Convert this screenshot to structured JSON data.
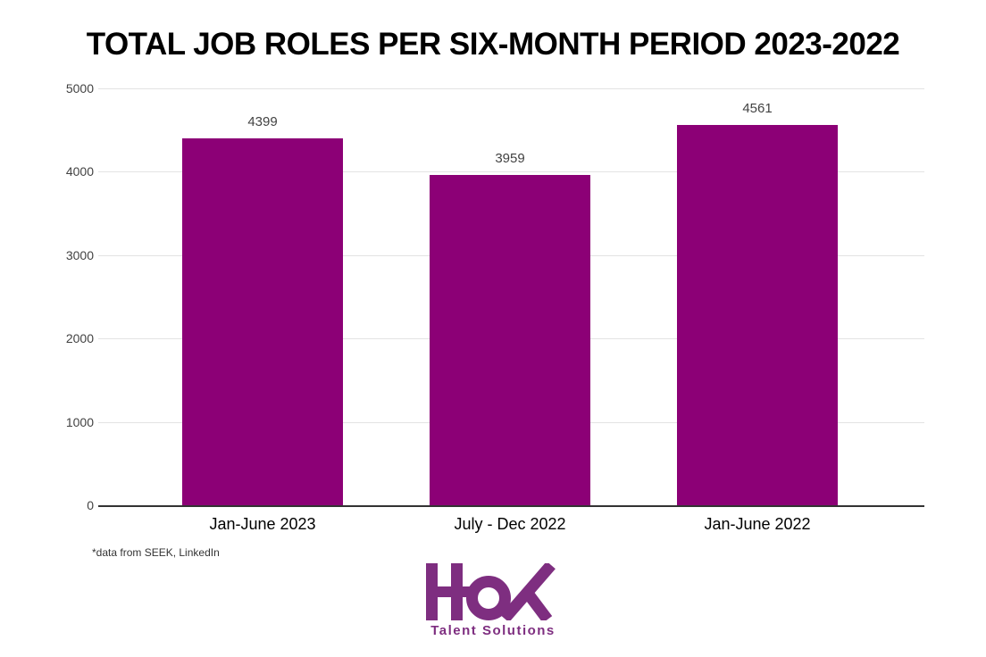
{
  "title": "TOTAL JOB ROLES PER SIX-MONTH PERIOD 2023-2022",
  "footnote": "*data from SEEK, LinkedIn",
  "logo": {
    "name": "HOK",
    "tagline": "Talent Solutions",
    "color": "#7E2E80"
  },
  "colors": {
    "bar": "#8C0076",
    "gridline": "#e3e3e3",
    "axis_line": "#333333",
    "tick_label": "#424242",
    "value_label": "#424242",
    "category_label": "#000000",
    "background": "#ffffff"
  },
  "chart_data": {
    "type": "bar",
    "title": "TOTAL JOB ROLES PER SIX-MONTH PERIOD 2023-2022",
    "categories": [
      "Jan-June 2023",
      "July - Dec 2022",
      "Jan-June 2022"
    ],
    "values": [
      4399,
      3959,
      4561
    ],
    "data_labels": [
      "4399",
      "3959",
      "4561"
    ],
    "xlabel": "",
    "ylabel": "",
    "ylim": [
      0,
      5000
    ],
    "yticks": [
      0,
      1000,
      2000,
      3000,
      4000,
      5000
    ],
    "grid": true,
    "legend": false,
    "legend_position": "none",
    "bar_color": "#8C0076"
  }
}
